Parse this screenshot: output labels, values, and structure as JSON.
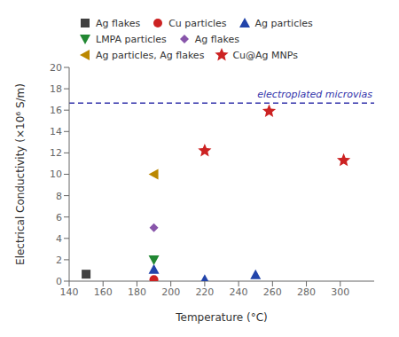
{
  "chart_data": {
    "type": "scatter",
    "xlabel": "Temperature (°C)",
    "ylabel": "Electrical Conductivity (×10⁶ S/m)",
    "xlim": [
      140,
      320
    ],
    "ylim": [
      0,
      20
    ],
    "xticks": [
      140,
      160,
      180,
      200,
      220,
      240,
      260,
      280,
      300
    ],
    "yticks": [
      0,
      2,
      4,
      6,
      8,
      10,
      12,
      14,
      16,
      18,
      20
    ],
    "grid": false,
    "legend": "upper left",
    "reference_lines": [
      {
        "y": 16.65,
        "color": "#3333AA",
        "line_style": "dashed",
        "label": "electroplated microvias",
        "label_x": 285,
        "label_y": 17.05
      }
    ],
    "series": [
      {
        "name": "Ag flakes",
        "color": "#404040",
        "marker": "square",
        "values": [
          [
            150,
            0.65
          ]
        ]
      },
      {
        "name": "Cu particles",
        "color": "#CC2222",
        "marker": "circle",
        "values": [
          [
            190,
            0.15
          ]
        ]
      },
      {
        "name": "Ag particles",
        "color": "#2244AA",
        "marker": "triangle-up",
        "values": [
          [
            190,
            1.1
          ],
          [
            220,
            0.15
          ],
          [
            250,
            0.6
          ]
        ]
      },
      {
        "name": "LMPA particles",
        "color": "#228833",
        "marker": "triangle-down",
        "values": [
          [
            190,
            2.0
          ]
        ]
      },
      {
        "name": "Ag flakes",
        "color": "#8855AA",
        "marker": "diamond",
        "values": [
          [
            190,
            5.0
          ]
        ]
      },
      {
        "name": "Ag particles, Ag flakes",
        "color": "#BB8800",
        "marker": "triangle-left",
        "values": [
          [
            190,
            10.0
          ]
        ]
      },
      {
        "name": "Cu@Ag MNPs",
        "color": "#CC2222",
        "marker": "star",
        "values": [
          [
            220,
            12.2
          ],
          [
            258,
            15.9
          ],
          [
            302,
            11.3
          ]
        ]
      }
    ]
  }
}
